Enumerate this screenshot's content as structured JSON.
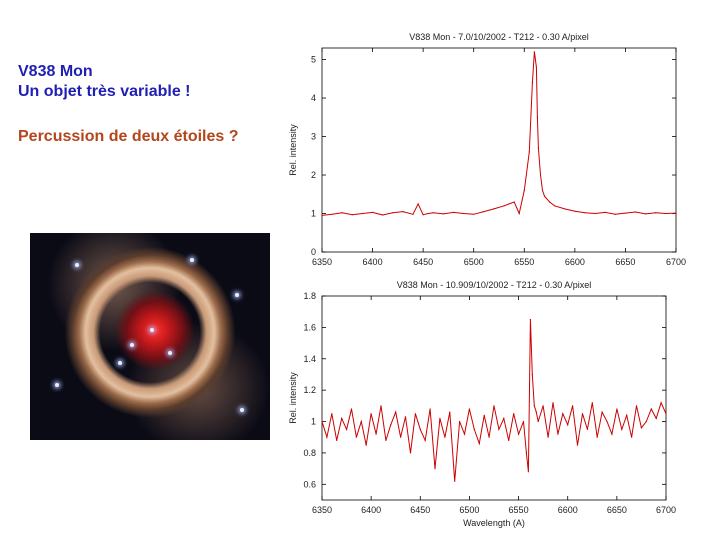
{
  "slide": {
    "title_line1": "V838 Mon",
    "title_line2": "Un objet très variable !",
    "subtitle": "Percussion de deux étoiles ?"
  },
  "image": {
    "description_icon": "nebula-light-echo-photo"
  },
  "colors": {
    "title": "#1f1fb4",
    "subtitle": "#b3471b",
    "series": "#cc0000",
    "axis": "#000000"
  },
  "chart_data": [
    {
      "type": "line",
      "title": "V838 Mon - 7.0/10/2002 - T212 - 0.30 A/pixel",
      "xlabel": "",
      "ylabel": "Rel. intensity",
      "xlim": [
        6350,
        6700
      ],
      "ylim": [
        0,
        5.3
      ],
      "x_ticks": [
        6350,
        6400,
        6450,
        6500,
        6550,
        6600,
        6650,
        6700
      ],
      "x_tick_labels": [
        "6350",
        "6400",
        "6450",
        "6500",
        "6550",
        "6600",
        "6650",
        "6700"
      ],
      "y_ticks": [
        0,
        1,
        2,
        3,
        4,
        5
      ],
      "y_tick_labels": [
        "0",
        "1",
        "2",
        "3",
        "4",
        "5"
      ],
      "series": [
        {
          "x": [
            6350,
            6360,
            6370,
            6380,
            6390,
            6400,
            6410,
            6420,
            6430,
            6440,
            6445,
            6450,
            6455,
            6460,
            6470,
            6480,
            6490,
            6500,
            6510,
            6520,
            6530,
            6540,
            6545,
            6550,
            6555,
            6558,
            6560,
            6562,
            6563,
            6564,
            6566,
            6568,
            6570,
            6575,
            6580,
            6590,
            6600,
            6610,
            6620,
            6630,
            6640,
            6650,
            6660,
            6670,
            6680,
            6690,
            6700
          ],
          "y": [
            0.95,
            0.98,
            1.02,
            0.97,
            1.0,
            1.03,
            0.96,
            1.02,
            1.05,
            0.98,
            1.25,
            0.97,
            1.0,
            1.02,
            0.99,
            1.03,
            1.0,
            0.98,
            1.05,
            1.12,
            1.2,
            1.3,
            1.0,
            1.6,
            2.6,
            4.4,
            5.2,
            4.8,
            3.5,
            2.7,
            2.0,
            1.6,
            1.45,
            1.3,
            1.2,
            1.12,
            1.06,
            1.02,
            1.0,
            1.03,
            0.98,
            1.01,
            1.04,
            0.99,
            1.02,
            1.0,
            1.01
          ]
        }
      ]
    },
    {
      "type": "line",
      "title": "V838 Mon - 10.909/10/2002 - T212 - 0.30 A/pixel",
      "xlabel": "Wavelength (A)",
      "ylabel": "Rel. intensity",
      "xlim": [
        6350,
        6700
      ],
      "ylim": [
        0.5,
        1.8
      ],
      "x_ticks": [
        6350,
        6400,
        6450,
        6500,
        6550,
        6600,
        6650,
        6700
      ],
      "x_tick_labels": [
        "6350",
        "6400",
        "6450",
        "6500",
        "6550",
        "6600",
        "6650",
        "6700"
      ],
      "y_ticks": [
        0.6,
        0.8,
        1.0,
        1.2,
        1.4,
        1.6,
        1.8
      ],
      "y_tick_labels": [
        "0.6",
        "0.8",
        "1",
        "1.2",
        "1.4",
        "1.6",
        "1.8"
      ],
      "series": [
        {
          "x": [
            6350,
            6355,
            6360,
            6365,
            6370,
            6375,
            6380,
            6385,
            6390,
            6395,
            6400,
            6405,
            6410,
            6415,
            6420,
            6425,
            6430,
            6435,
            6440,
            6445,
            6450,
            6455,
            6460,
            6465,
            6470,
            6475,
            6480,
            6485,
            6490,
            6495,
            6500,
            6505,
            6510,
            6515,
            6520,
            6525,
            6530,
            6535,
            6540,
            6545,
            6550,
            6555,
            6558,
            6560,
            6562,
            6564,
            6566,
            6568,
            6570,
            6575,
            6580,
            6585,
            6590,
            6595,
            6600,
            6605,
            6610,
            6615,
            6620,
            6625,
            6630,
            6635,
            6640,
            6645,
            6650,
            6655,
            6660,
            6665,
            6670,
            6675,
            6680,
            6685,
            6690,
            6695,
            6700
          ],
          "y": [
            1.0,
            0.9,
            1.05,
            0.88,
            1.02,
            0.95,
            1.08,
            0.9,
            1.0,
            0.85,
            1.05,
            0.92,
            1.1,
            0.88,
            0.98,
            1.06,
            0.9,
            1.03,
            0.8,
            1.05,
            0.95,
            0.88,
            1.08,
            0.7,
            1.02,
            0.9,
            1.06,
            0.62,
            1.0,
            0.92,
            1.08,
            0.95,
            0.86,
            1.04,
            0.9,
            1.1,
            0.95,
            1.02,
            0.88,
            1.05,
            0.92,
            1.0,
            0.8,
            0.68,
            1.65,
            1.3,
            1.1,
            1.06,
            1.0,
            1.1,
            0.9,
            1.12,
            0.92,
            1.05,
            0.98,
            1.1,
            0.85,
            1.05,
            0.95,
            1.12,
            0.9,
            1.06,
            1.0,
            0.92,
            1.08,
            0.95,
            1.04,
            0.9,
            1.1,
            0.96,
            1.0,
            1.08,
            1.02,
            1.12,
            1.05
          ]
        }
      ]
    }
  ]
}
